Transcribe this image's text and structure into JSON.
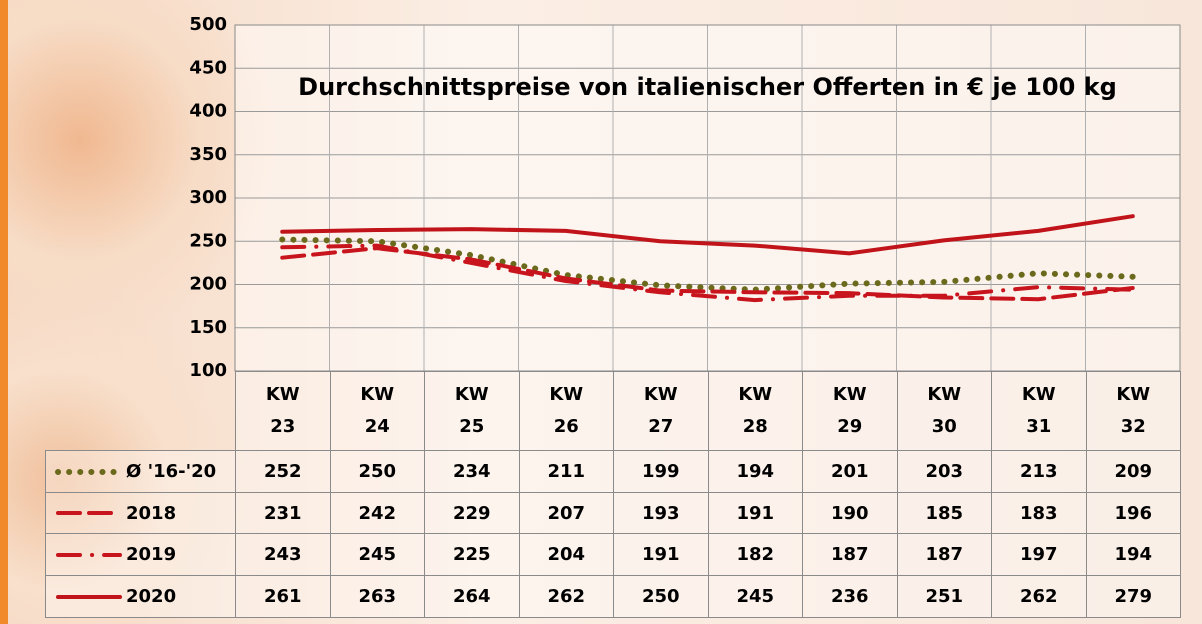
{
  "chart_data": {
    "type": "line",
    "title": "Durchschnittspreise von italienischer Offerten in € je 100 kg",
    "categories": [
      "KW 23",
      "KW 24",
      "KW 25",
      "KW 26",
      "KW 27",
      "KW 28",
      "KW 29",
      "KW 30",
      "KW 31",
      "KW 32"
    ],
    "series": [
      {
        "name": "Ø '16-'20",
        "color": "#6b6a1c",
        "style": "dotted",
        "values": [
          252,
          250,
          234,
          211,
          199,
          194,
          201,
          203,
          213,
          209
        ]
      },
      {
        "name": "2018",
        "color": "#c8141c",
        "style": "dashed",
        "values": [
          231,
          242,
          229,
          207,
          193,
          191,
          190,
          185,
          183,
          196
        ]
      },
      {
        "name": "2019",
        "color": "#c8141c",
        "style": "dashdot",
        "values": [
          243,
          245,
          225,
          204,
          191,
          182,
          187,
          187,
          197,
          194
        ]
      },
      {
        "name": "2020",
        "color": "#c0141a",
        "style": "solid",
        "values": [
          261,
          263,
          264,
          262,
          250,
          245,
          236,
          251,
          262,
          279
        ]
      }
    ],
    "ylim": [
      100,
      500
    ],
    "yticks": [
      100,
      150,
      200,
      250,
      300,
      350,
      400,
      450,
      500
    ],
    "grid": true
  }
}
